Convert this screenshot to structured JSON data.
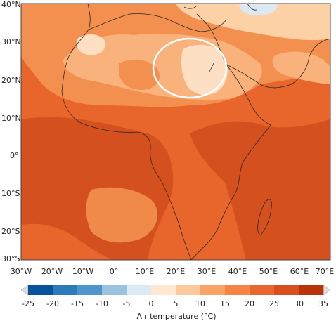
{
  "map": {
    "lat_labels": [
      "40°N",
      "30°N",
      "20°N",
      "10°N",
      "0°",
      "10°S",
      "20°S",
      "30°S"
    ],
    "lon_labels": [
      "30°W",
      "20°W",
      "10°W",
      "0°",
      "10°E",
      "20°E",
      "30°E",
      "40°E",
      "50°E",
      "60°E",
      "70°E"
    ],
    "highlight": "ellipse-outline"
  },
  "legend": {
    "title": "Air temperature (°C)",
    "ticks": [
      "-25",
      "-20",
      "-15",
      "-10",
      "-5",
      "0",
      "5",
      "10",
      "15",
      "20",
      "25",
      "30",
      "35"
    ],
    "colors": [
      "#08519c",
      "#2b7bba",
      "#4f95cc",
      "#9ac3df",
      "#dceaf3",
      "#ffe8d2",
      "#fcc99d",
      "#f9a466",
      "#f58446",
      "#ea6630",
      "#d84e1c",
      "#b83309"
    ]
  },
  "colors": {
    "base": "#e8652c",
    "warm_dark": "#d4501f",
    "mid": "#f4904f",
    "light": "#f9b27c",
    "lighter": "#fcd1a6",
    "palest": "#fde4cb",
    "cool": "#dce9f3"
  }
}
